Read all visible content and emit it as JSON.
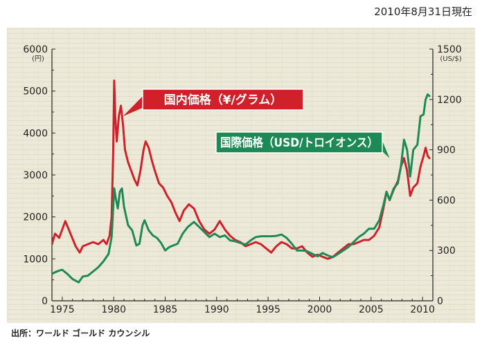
{
  "date_note": "2010年8月31日現在",
  "source": "出所：ワールド ゴールド カウンシル",
  "chart_data": {
    "type": "line",
    "title": "",
    "xlabel": "",
    "xlim": [
      1974,
      2011
    ],
    "x_ticks": [
      "1975",
      "1980",
      "1985",
      "1990",
      "1995",
      "2000",
      "2005",
      "2010"
    ],
    "left_axis": {
      "unit": "(円)",
      "ylim": [
        0,
        6000
      ],
      "ticks": [
        "0",
        "1000",
        "2000",
        "3000",
        "4000",
        "5000",
        "6000"
      ]
    },
    "right_axis": {
      "unit": "(US/$)",
      "ylim": [
        0,
        1500
      ],
      "ticks": [
        "0",
        "300",
        "600",
        "900",
        "1200",
        "1500"
      ]
    },
    "series": [
      {
        "name": "国内価格（¥/グラム）",
        "axis": "left",
        "color": "#d0202a",
        "points": [
          [
            1974.0,
            1350
          ],
          [
            1974.3,
            1600
          ],
          [
            1974.7,
            1500
          ],
          [
            1975.0,
            1700
          ],
          [
            1975.3,
            1900
          ],
          [
            1975.8,
            1600
          ],
          [
            1976.3,
            1300
          ],
          [
            1976.7,
            1150
          ],
          [
            1977.0,
            1300
          ],
          [
            1977.5,
            1350
          ],
          [
            1978.0,
            1400
          ],
          [
            1978.5,
            1350
          ],
          [
            1979.0,
            1450
          ],
          [
            1979.3,
            1350
          ],
          [
            1979.6,
            1550
          ],
          [
            1979.8,
            2000
          ],
          [
            1979.95,
            3500
          ],
          [
            1980.05,
            5250
          ],
          [
            1980.15,
            4400
          ],
          [
            1980.3,
            3800
          ],
          [
            1980.5,
            4400
          ],
          [
            1980.7,
            4650
          ],
          [
            1980.9,
            4200
          ],
          [
            1981.1,
            3600
          ],
          [
            1981.4,
            3300
          ],
          [
            1981.7,
            3100
          ],
          [
            1982.0,
            2900
          ],
          [
            1982.3,
            2750
          ],
          [
            1982.6,
            3100
          ],
          [
            1982.9,
            3600
          ],
          [
            1983.1,
            3800
          ],
          [
            1983.4,
            3650
          ],
          [
            1983.7,
            3350
          ],
          [
            1984.0,
            3100
          ],
          [
            1984.4,
            2800
          ],
          [
            1984.8,
            2700
          ],
          [
            1985.2,
            2500
          ],
          [
            1985.6,
            2350
          ],
          [
            1986.0,
            2100
          ],
          [
            1986.4,
            1900
          ],
          [
            1986.8,
            2150
          ],
          [
            1987.3,
            2300
          ],
          [
            1987.8,
            2200
          ],
          [
            1988.3,
            1900
          ],
          [
            1988.8,
            1700
          ],
          [
            1989.3,
            1600
          ],
          [
            1989.8,
            1700
          ],
          [
            1990.3,
            1900
          ],
          [
            1990.8,
            1700
          ],
          [
            1991.3,
            1550
          ],
          [
            1991.8,
            1450
          ],
          [
            1992.3,
            1400
          ],
          [
            1992.8,
            1300
          ],
          [
            1993.3,
            1350
          ],
          [
            1993.8,
            1400
          ],
          [
            1994.3,
            1350
          ],
          [
            1994.8,
            1250
          ],
          [
            1995.3,
            1150
          ],
          [
            1995.8,
            1300
          ],
          [
            1996.3,
            1400
          ],
          [
            1996.8,
            1350
          ],
          [
            1997.3,
            1250
          ],
          [
            1997.8,
            1250
          ],
          [
            1998.3,
            1300
          ],
          [
            1998.8,
            1150
          ],
          [
            1999.3,
            1050
          ],
          [
            1999.8,
            1100
          ],
          [
            2000.3,
            1050
          ],
          [
            2000.8,
            1000
          ],
          [
            2001.3,
            1050
          ],
          [
            2001.8,
            1150
          ],
          [
            2002.3,
            1250
          ],
          [
            2002.8,
            1350
          ],
          [
            2003.3,
            1350
          ],
          [
            2003.8,
            1400
          ],
          [
            2004.3,
            1450
          ],
          [
            2004.8,
            1450
          ],
          [
            2005.3,
            1550
          ],
          [
            2005.8,
            1750
          ],
          [
            2006.2,
            2200
          ],
          [
            2006.5,
            2600
          ],
          [
            2006.8,
            2400
          ],
          [
            2007.2,
            2650
          ],
          [
            2007.6,
            2850
          ],
          [
            2007.9,
            3200
          ],
          [
            2008.2,
            3400
          ],
          [
            2008.5,
            3100
          ],
          [
            2008.8,
            2500
          ],
          [
            2009.1,
            2700
          ],
          [
            2009.5,
            2800
          ],
          [
            2009.8,
            3200
          ],
          [
            2010.1,
            3450
          ],
          [
            2010.3,
            3650
          ],
          [
            2010.5,
            3450
          ],
          [
            2010.67,
            3400
          ]
        ]
      },
      {
        "name": "国際価格（USD/トロイオンス）",
        "axis": "right",
        "color": "#1d8a56",
        "points": [
          [
            1974.0,
            160
          ],
          [
            1974.3,
            170
          ],
          [
            1974.7,
            180
          ],
          [
            1975.0,
            185
          ],
          [
            1975.5,
            160
          ],
          [
            1976.0,
            130
          ],
          [
            1976.6,
            110
          ],
          [
            1977.0,
            145
          ],
          [
            1977.5,
            150
          ],
          [
            1978.0,
            175
          ],
          [
            1978.5,
            200
          ],
          [
            1979.0,
            235
          ],
          [
            1979.5,
            280
          ],
          [
            1979.8,
            380
          ],
          [
            1979.95,
            550
          ],
          [
            1980.05,
            670
          ],
          [
            1980.2,
            610
          ],
          [
            1980.4,
            550
          ],
          [
            1980.6,
            650
          ],
          [
            1980.8,
            670
          ],
          [
            1981.0,
            560
          ],
          [
            1981.4,
            450
          ],
          [
            1981.8,
            420
          ],
          [
            1982.2,
            330
          ],
          [
            1982.5,
            340
          ],
          [
            1982.8,
            450
          ],
          [
            1983.0,
            480
          ],
          [
            1983.4,
            420
          ],
          [
            1983.8,
            390
          ],
          [
            1984.2,
            375
          ],
          [
            1984.6,
            345
          ],
          [
            1985.0,
            300
          ],
          [
            1985.4,
            320
          ],
          [
            1985.8,
            330
          ],
          [
            1986.2,
            340
          ],
          [
            1986.7,
            400
          ],
          [
            1987.2,
            440
          ],
          [
            1987.8,
            470
          ],
          [
            1988.3,
            440
          ],
          [
            1988.8,
            410
          ],
          [
            1989.3,
            380
          ],
          [
            1989.8,
            400
          ],
          [
            1990.3,
            380
          ],
          [
            1990.8,
            390
          ],
          [
            1991.3,
            360
          ],
          [
            1991.8,
            355
          ],
          [
            1992.3,
            345
          ],
          [
            1992.8,
            335
          ],
          [
            1993.3,
            360
          ],
          [
            1993.8,
            380
          ],
          [
            1994.3,
            385
          ],
          [
            1994.8,
            385
          ],
          [
            1995.3,
            385
          ],
          [
            1995.8,
            387
          ],
          [
            1996.3,
            395
          ],
          [
            1996.8,
            375
          ],
          [
            1997.3,
            340
          ],
          [
            1997.8,
            300
          ],
          [
            1998.3,
            300
          ],
          [
            1998.8,
            295
          ],
          [
            1999.3,
            280
          ],
          [
            1999.8,
            265
          ],
          [
            2000.3,
            285
          ],
          [
            2000.8,
            270
          ],
          [
            2001.3,
            260
          ],
          [
            2001.8,
            280
          ],
          [
            2002.3,
            300
          ],
          [
            2002.8,
            320
          ],
          [
            2003.3,
            350
          ],
          [
            2003.8,
            380
          ],
          [
            2004.3,
            400
          ],
          [
            2004.8,
            430
          ],
          [
            2005.3,
            430
          ],
          [
            2005.8,
            480
          ],
          [
            2006.2,
            570
          ],
          [
            2006.5,
            650
          ],
          [
            2006.8,
            600
          ],
          [
            2007.2,
            670
          ],
          [
            2007.6,
            700
          ],
          [
            2007.9,
            800
          ],
          [
            2008.2,
            960
          ],
          [
            2008.5,
            900
          ],
          [
            2008.8,
            740
          ],
          [
            2009.1,
            900
          ],
          [
            2009.5,
            930
          ],
          [
            2009.8,
            1100
          ],
          [
            2010.1,
            1110
          ],
          [
            2010.3,
            1200
          ],
          [
            2010.5,
            1230
          ],
          [
            2010.67,
            1220
          ]
        ]
      }
    ],
    "annotations": [
      {
        "text": "国内価格（¥/グラム）",
        "series": 0,
        "color": "#d0202a",
        "pointer": [
          1980.9,
          4400
        ]
      },
      {
        "text": "国際価格（USD/トロイオンス）",
        "series": 1,
        "color": "#1d8a56",
        "pointer": [
          2006.8,
          850
        ]
      }
    ],
    "grid": false,
    "background": "#ece9d8"
  }
}
